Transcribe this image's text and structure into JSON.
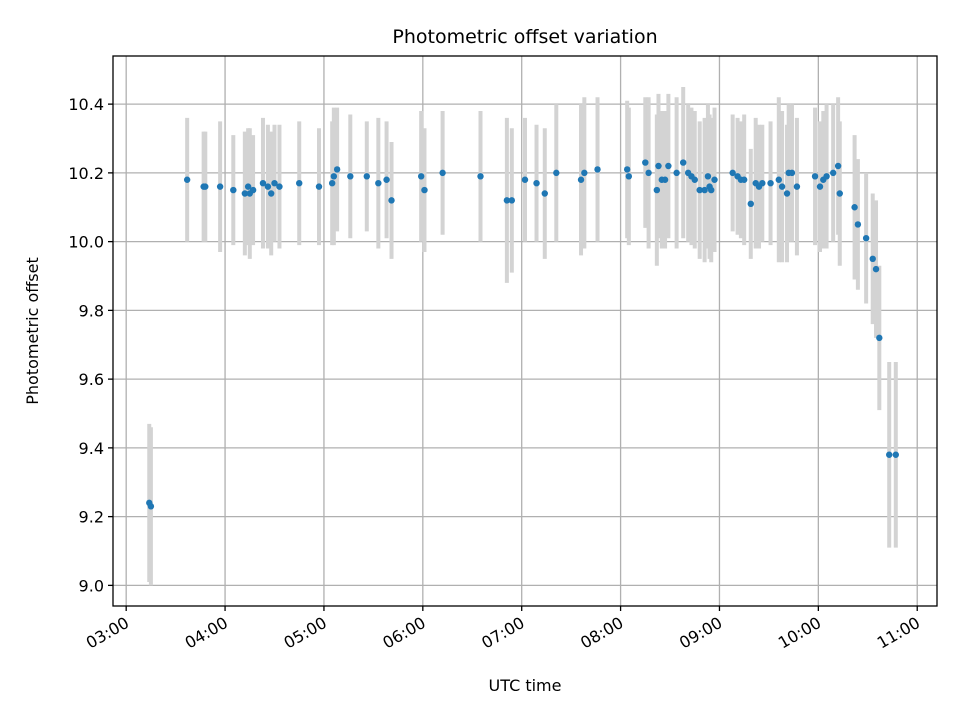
{
  "chart_data": {
    "type": "scatter",
    "title": "Photometric offset variation",
    "xlabel": "UTC time",
    "ylabel": "Photometric offset",
    "xlim": [
      "02:52",
      "11:12"
    ],
    "ylim": [
      8.94,
      10.54
    ],
    "xticks": [
      "03:00",
      "04:00",
      "05:00",
      "06:00",
      "07:00",
      "08:00",
      "09:00",
      "10:00",
      "11:00"
    ],
    "yticks": [
      9.0,
      9.2,
      9.4,
      9.6,
      9.8,
      10.0,
      10.2,
      10.4
    ],
    "ytick_labels": [
      "9.0",
      "9.2",
      "9.4",
      "9.6",
      "9.8",
      "10.0",
      "10.2",
      "10.4"
    ],
    "grid": true,
    "colors": {
      "points": "#1f77b4",
      "errorbars": "#d3d3d3"
    },
    "series": [
      {
        "x": [
          "03:14",
          "03:15",
          "03:37",
          "03:47",
          "03:48",
          "03:57",
          "04:05",
          "04:12",
          "04:14",
          "04:15",
          "04:17",
          "04:23",
          "04:26",
          "04:28",
          "04:30",
          "04:33",
          "04:45",
          "04:57",
          "05:05",
          "05:06",
          "05:08",
          "05:16",
          "05:26",
          "05:33",
          "05:38",
          "05:41",
          "05:59",
          "06:01",
          "06:12",
          "06:35",
          "06:51",
          "06:54",
          "07:02",
          "07:09",
          "07:14",
          "07:21",
          "07:36",
          "07:38",
          "07:46",
          "08:04",
          "08:05",
          "08:15",
          "08:17",
          "08:22",
          "08:23",
          "08:25",
          "08:27",
          "08:29",
          "08:34",
          "08:38",
          "08:41",
          "08:43",
          "08:45",
          "08:48",
          "08:51",
          "08:53",
          "08:54",
          "08:55",
          "08:57",
          "09:08",
          "09:11",
          "09:13",
          "09:15",
          "09:19",
          "09:22",
          "09:24",
          "09:26",
          "09:31",
          "09:36",
          "09:38",
          "09:41",
          "09:42",
          "09:44",
          "09:47",
          "09:58",
          "10:01",
          "10:03",
          "10:05",
          "10:09",
          "10:12",
          "10:13",
          "10:22",
          "10:24",
          "10:29",
          "10:33",
          "10:35",
          "10:37",
          "10:43",
          "10:47"
        ],
        "y": [
          9.24,
          9.23,
          10.18,
          10.16,
          10.16,
          10.16,
          10.15,
          10.14,
          10.16,
          10.14,
          10.15,
          10.17,
          10.16,
          10.14,
          10.17,
          10.16,
          10.17,
          10.16,
          10.17,
          10.19,
          10.21,
          10.19,
          10.19,
          10.17,
          10.18,
          10.12,
          10.19,
          10.15,
          10.2,
          10.19,
          10.12,
          10.12,
          10.18,
          10.17,
          10.14,
          10.2,
          10.18,
          10.2,
          10.21,
          10.21,
          10.19,
          10.23,
          10.2,
          10.15,
          10.22,
          10.18,
          10.18,
          10.22,
          10.2,
          10.23,
          10.2,
          10.19,
          10.18,
          10.15,
          10.15,
          10.19,
          10.16,
          10.15,
          10.18,
          10.2,
          10.19,
          10.18,
          10.18,
          10.11,
          10.17,
          10.16,
          10.17,
          10.17,
          10.18,
          10.16,
          10.14,
          10.2,
          10.2,
          10.16,
          10.19,
          10.16,
          10.18,
          10.19,
          10.2,
          10.22,
          10.14,
          10.1,
          10.05,
          10.01,
          9.95,
          9.92,
          9.72,
          9.38,
          9.38
        ],
        "yerr": [
          0.23,
          0.23,
          0.18,
          0.16,
          0.16,
          0.19,
          0.16,
          0.18,
          0.17,
          0.19,
          0.16,
          0.19,
          0.18,
          0.18,
          0.17,
          0.18,
          0.18,
          0.17,
          0.18,
          0.2,
          0.18,
          0.18,
          0.16,
          0.19,
          0.17,
          0.17,
          0.19,
          0.18,
          0.18,
          0.19,
          0.24,
          0.21,
          0.18,
          0.17,
          0.19,
          0.2,
          0.22,
          0.22,
          0.21,
          0.2,
          0.2,
          0.19,
          0.22,
          0.22,
          0.21,
          0.2,
          0.2,
          0.21,
          0.22,
          0.22,
          0.2,
          0.2,
          0.2,
          0.2,
          0.21,
          0.21,
          0.21,
          0.21,
          0.21,
          0.17,
          0.17,
          0.17,
          0.19,
          0.16,
          0.19,
          0.18,
          0.17,
          0.18,
          0.24,
          0.22,
          0.2,
          0.2,
          0.2,
          0.2,
          0.2,
          0.19,
          0.2,
          0.21,
          0.2,
          0.2,
          0.21,
          0.21,
          0.19,
          0.19,
          0.19,
          0.2,
          0.21,
          0.27,
          0.27
        ]
      }
    ]
  }
}
